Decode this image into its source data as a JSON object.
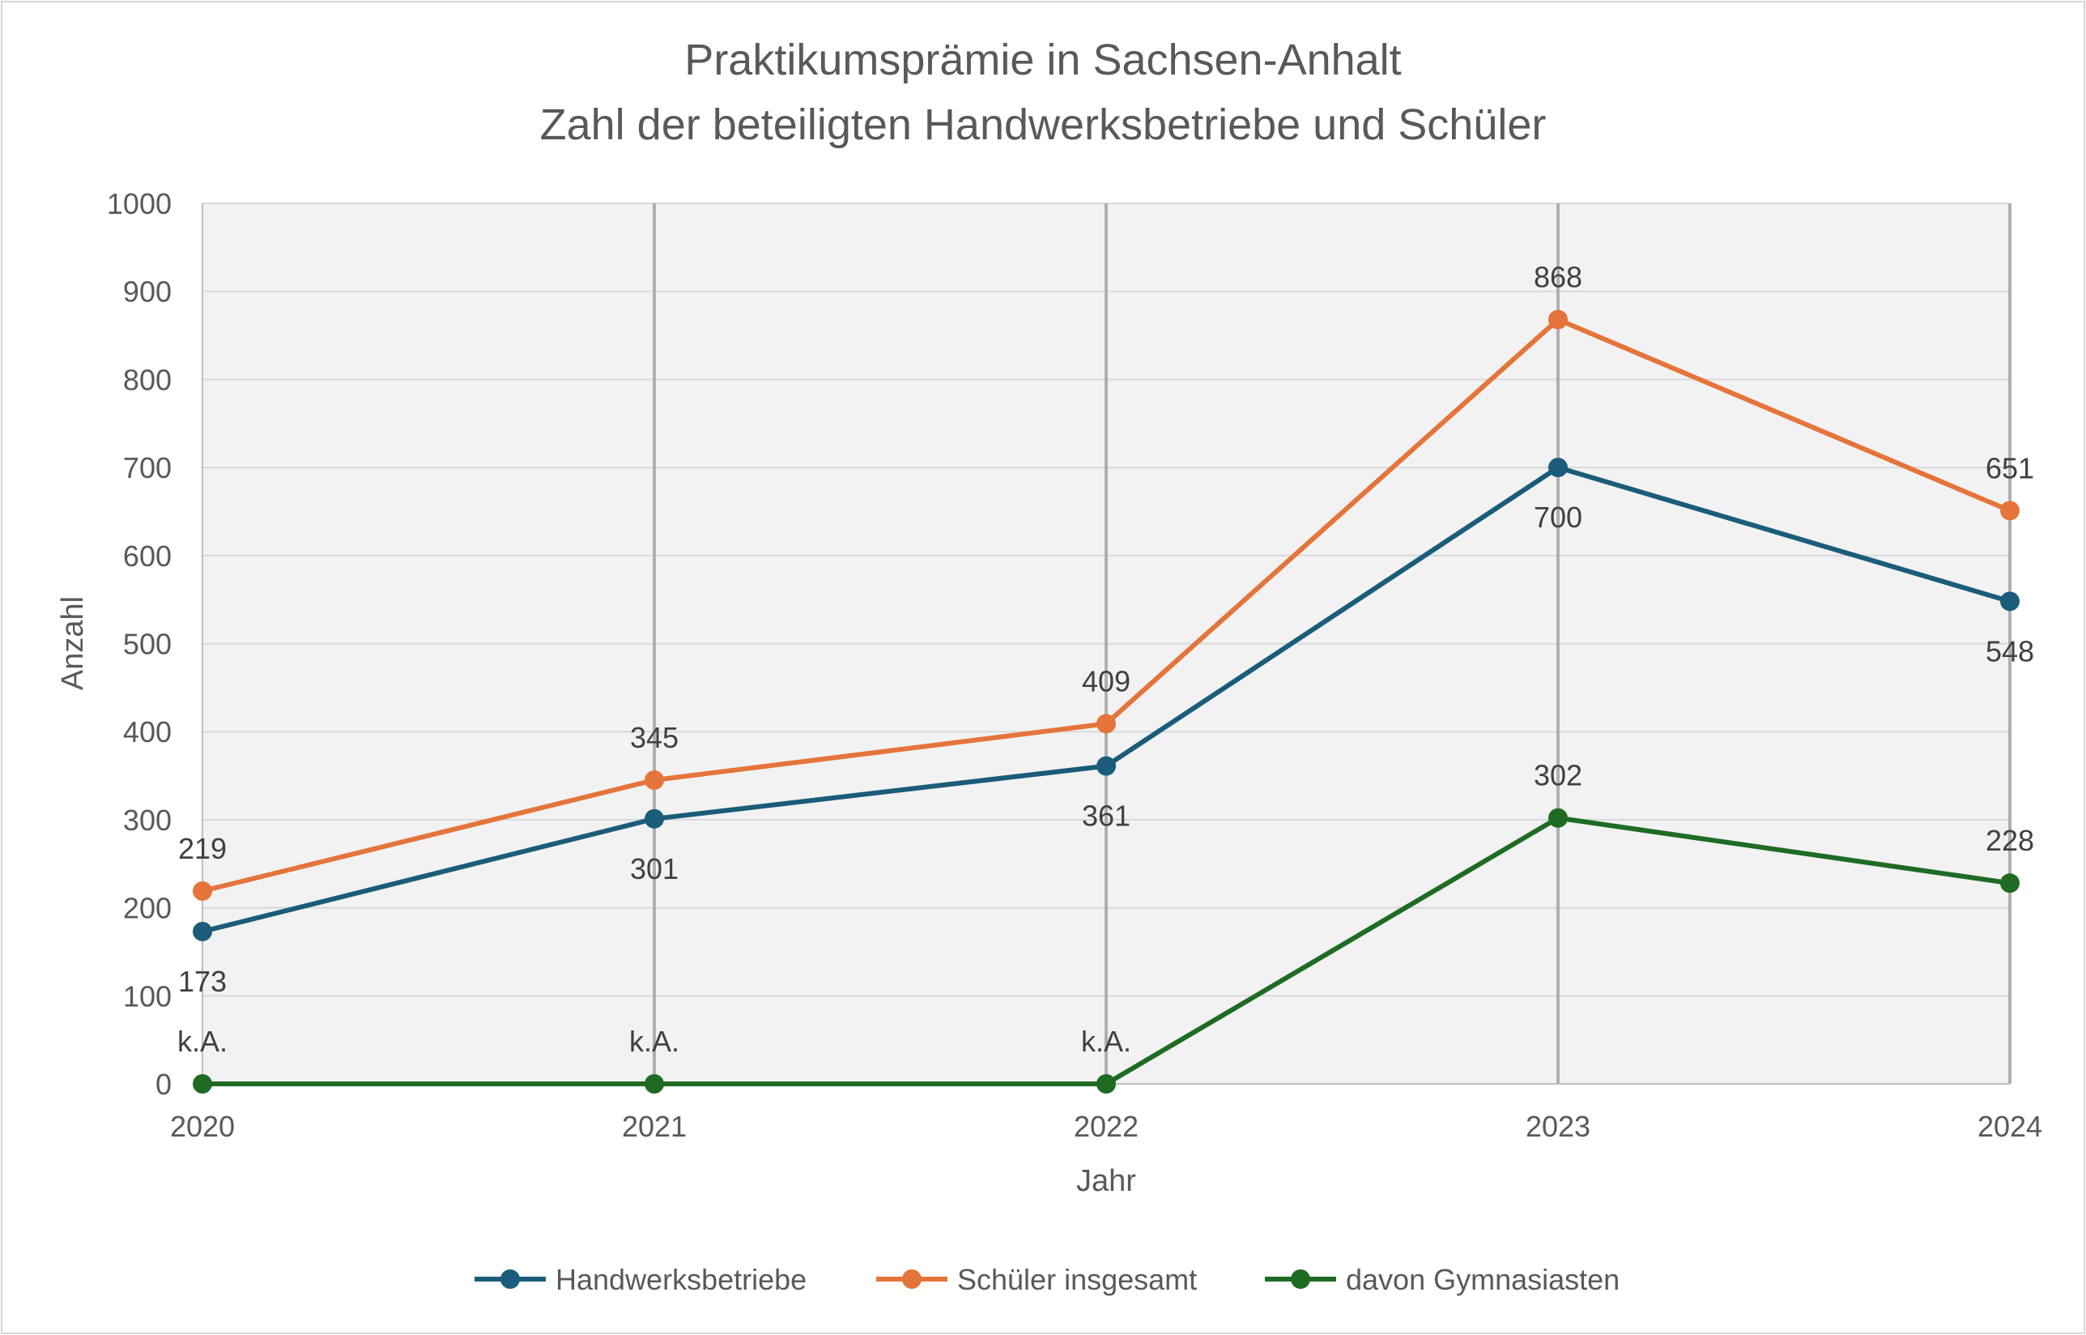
{
  "chart_data": {
    "type": "line",
    "title": "Praktikumsprämie in Sachsen-Anhalt",
    "subtitle": "Zahl der beteiligten Handwerksbetriebe und Schüler",
    "xlabel": "Jahr",
    "ylabel": "Anzahl",
    "x": [
      "2020",
      "2021",
      "2022",
      "2023",
      "2024"
    ],
    "ylim": [
      0,
      1000
    ],
    "yticks": [
      0,
      100,
      200,
      300,
      400,
      500,
      600,
      700,
      800,
      900,
      1000
    ],
    "grid": true,
    "legend_position": "bottom",
    "series": [
      {
        "name": "Handwerksbetriebe",
        "color": "#1a5c7a",
        "values": [
          173,
          301,
          361,
          700,
          548
        ],
        "labels": [
          "173",
          "301",
          "361",
          "700",
          "548"
        ],
        "label_position": "below"
      },
      {
        "name": "Schüler insgesamt",
        "color": "#e5743a",
        "values": [
          219,
          345,
          409,
          868,
          651
        ],
        "labels": [
          "219",
          "345",
          "409",
          "868",
          "651"
        ],
        "label_position": "above"
      },
      {
        "name": "davon Gymnasiasten",
        "color": "#1f6b24",
        "values": [
          0,
          0,
          0,
          302,
          228
        ],
        "labels": [
          "k.A.",
          "k.A.",
          "k.A.",
          "302",
          "228"
        ],
        "label_position": "above"
      }
    ]
  }
}
